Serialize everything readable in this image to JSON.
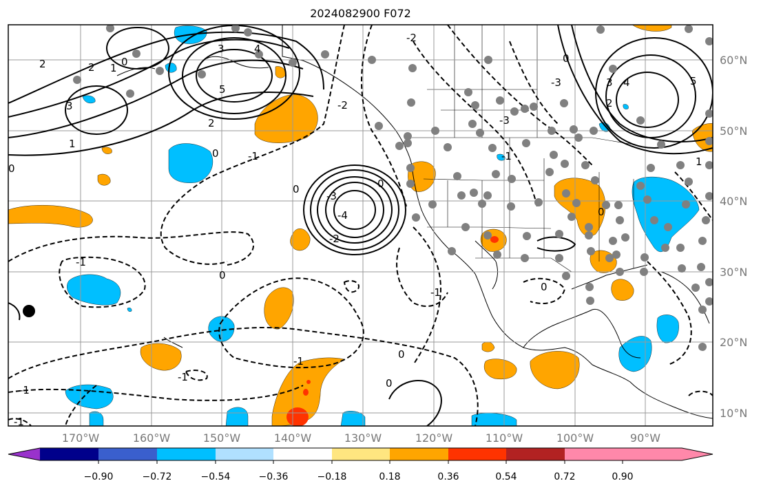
{
  "title": "2024082900 F072",
  "map": {
    "latitude_labels": [
      "60°N",
      "50°N",
      "40°N",
      "30°N",
      "20°N",
      "10°N"
    ],
    "longitude_labels": [
      "170°W",
      "160°W",
      "150°W",
      "140°W",
      "130°W",
      "120°W",
      "110°W",
      "100°W",
      "90°W"
    ],
    "contour_labels": [
      "2",
      "2",
      "1",
      "0",
      "3",
      "4",
      "5",
      "3",
      "2",
      "1",
      "0",
      "0",
      "1",
      "2",
      "3",
      "4",
      "5",
      "-3",
      "-2",
      "-1",
      "0",
      "-1",
      "-2",
      "-3",
      "-4",
      "-3",
      "-2",
      "-1",
      "0",
      "0",
      "-1",
      "0",
      "-1",
      "0",
      "-1",
      "-1",
      "-1",
      "0",
      "0",
      "0"
    ],
    "colors": {
      "positive_contour": "#000000",
      "negative_contour": "#000000",
      "grid": "#999999",
      "land_outline": "#000000",
      "station_dot": "#808080"
    }
  },
  "colorbar": {
    "ticks": [
      "−0.90",
      "−0.72",
      "−0.54",
      "−0.36",
      "−0.18",
      "0.18",
      "0.36",
      "0.54",
      "0.72",
      "0.90"
    ],
    "colors": [
      "#9932cc",
      "#00008b",
      "#3a5fcd",
      "#00bfff",
      "#b0e0ff",
      "#ffffff",
      "#ffe680",
      "#ffa500",
      "#ff3300",
      "#b22222",
      "#ff88aa"
    ]
  }
}
